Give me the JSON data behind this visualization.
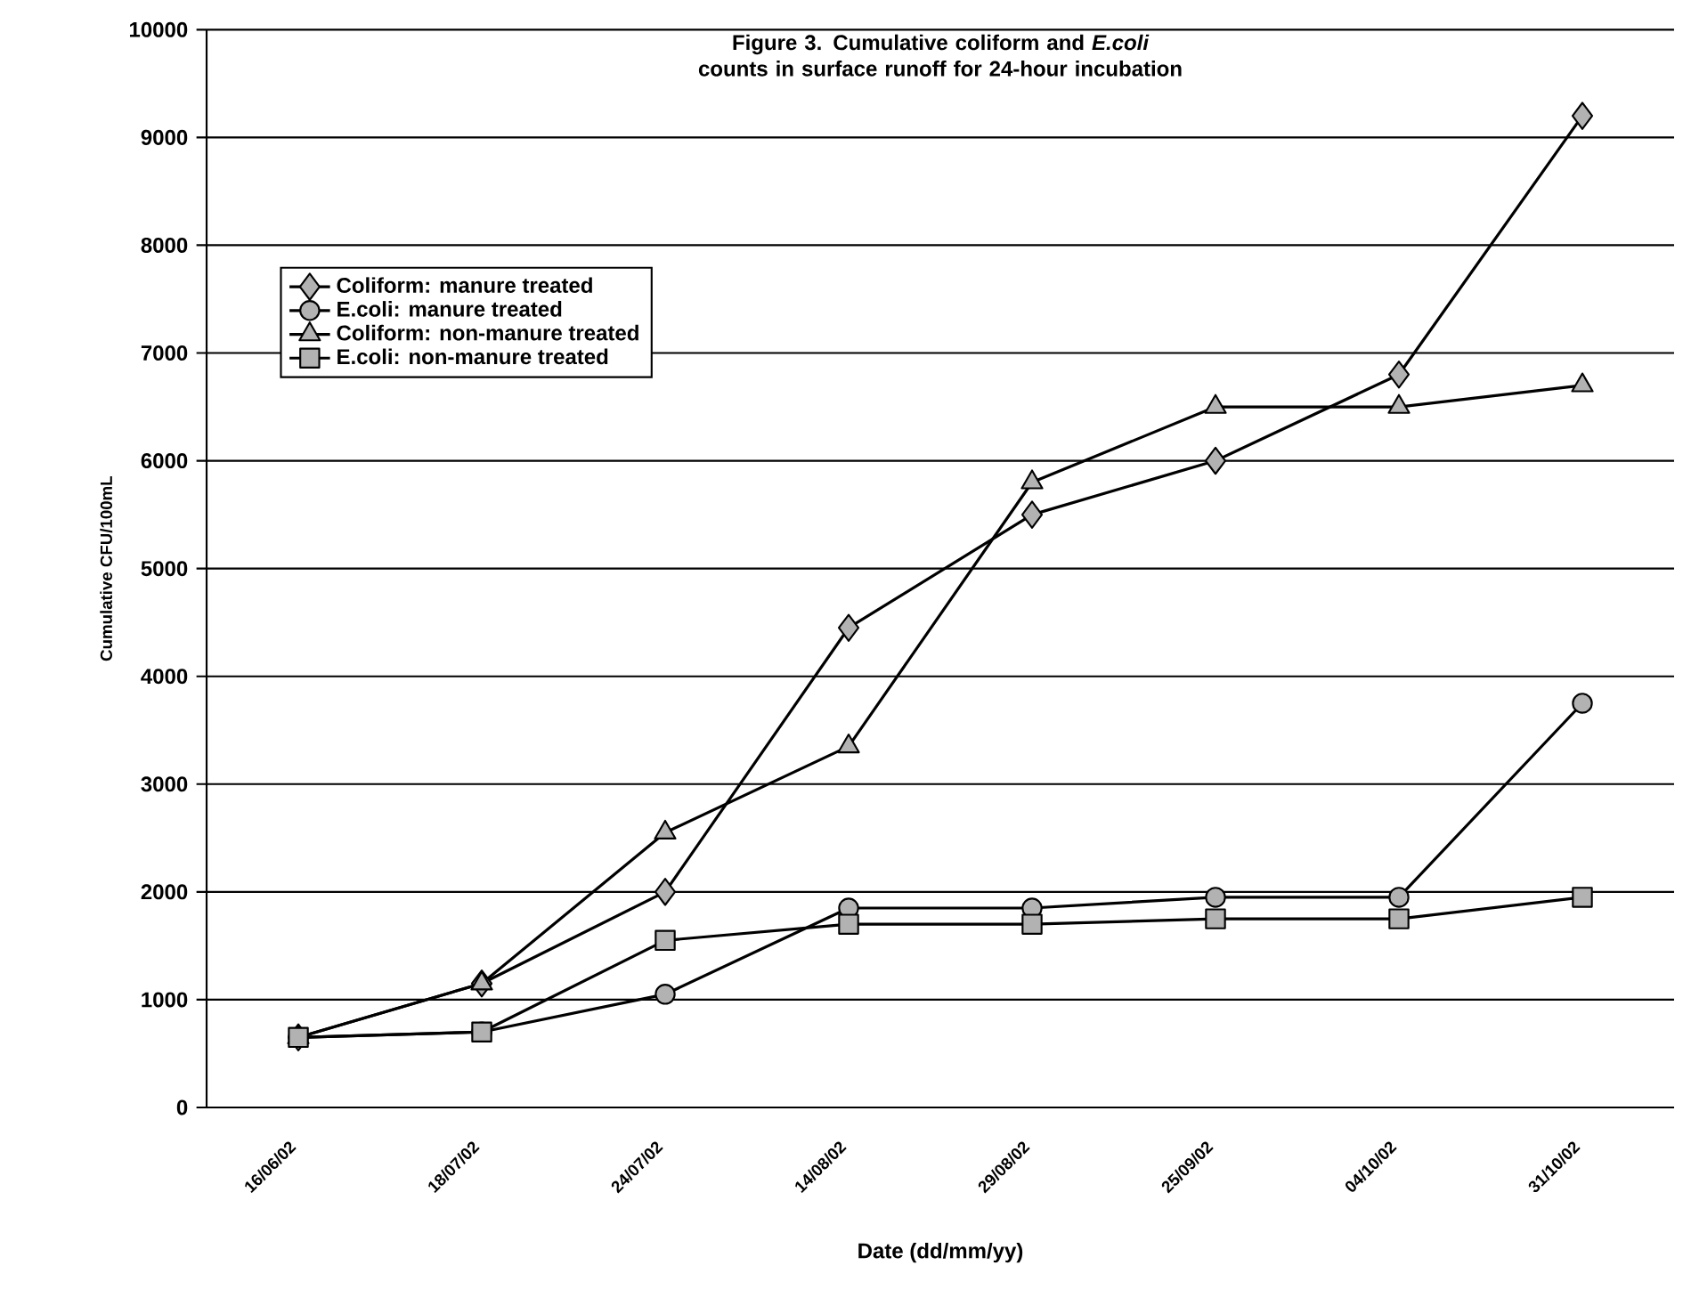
{
  "chart_data": {
    "type": "line",
    "title": "Figure 3. Cumulative coliform and *E.coli* counts in surface runoff for 24-hour incubation",
    "xlabel": "Date (dd/mm/yy)",
    "ylabel": "Cumulative CFU/100mL",
    "categories": [
      "16/06/02",
      "18/07/02",
      "24/07/02",
      "14/08/02",
      "29/08/02",
      "25/09/02",
      "04/10/02",
      "31/10/02"
    ],
    "series": [
      {
        "name": "Coliform: manure treated",
        "color": "#000000",
        "marker": "diamond",
        "values": [
          650,
          1150,
          2000,
          4450,
          5500,
          6000,
          6800,
          9200
        ]
      },
      {
        "name": "E.coli: manure treated",
        "color": "#000000",
        "marker": "circle",
        "values": [
          650,
          700,
          1050,
          1850,
          1850,
          1950,
          1950,
          3750
        ]
      },
      {
        "name": "Coliform: non-manure treated",
        "color": "#000000",
        "marker": "triangle",
        "values": [
          650,
          1150,
          2550,
          3350,
          5800,
          6500,
          6500,
          6700
        ]
      },
      {
        "name": "E.coli: non-manure treated",
        "color": "#000000",
        "marker": "square",
        "values": [
          650,
          700,
          1550,
          1700,
          1700,
          1750,
          1750,
          1950
        ]
      }
    ],
    "ylim": [
      0,
      10000
    ],
    "yticks": [
      0,
      1000,
      2000,
      3000,
      4000,
      5000,
      6000,
      7000,
      8000,
      9000,
      10000
    ],
    "grid": "y",
    "legend": "top left",
    "line_style": "solid"
  }
}
